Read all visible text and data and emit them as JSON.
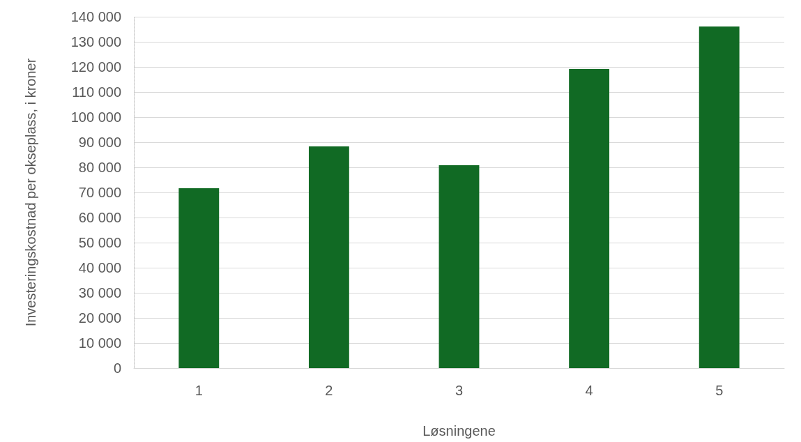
{
  "chart_data": {
    "type": "bar",
    "xlabel": "Løsningene",
    "ylabel": "Investeringskostnad per okseplass, i kroner",
    "categories": [
      "1",
      "2",
      "3",
      "4",
      "5"
    ],
    "values": [
      71700,
      88300,
      80800,
      119200,
      136100
    ],
    "color": "#116a24",
    "ylim": [
      0,
      140000
    ],
    "yticks": [
      {
        "value": 0,
        "label": "0"
      },
      {
        "value": 10000,
        "label": "10 000"
      },
      {
        "value": 20000,
        "label": "20 000"
      },
      {
        "value": 30000,
        "label": "30 000"
      },
      {
        "value": 40000,
        "label": "40 000"
      },
      {
        "value": 50000,
        "label": "50 000"
      },
      {
        "value": 60000,
        "label": "60 000"
      },
      {
        "value": 70000,
        "label": "70 000"
      },
      {
        "value": 80000,
        "label": "80 000"
      },
      {
        "value": 90000,
        "label": "90 000"
      },
      {
        "value": 100000,
        "label": "100 000"
      },
      {
        "value": 110000,
        "label": "110 000"
      },
      {
        "value": 120000,
        "label": "120 000"
      },
      {
        "value": 130000,
        "label": "130 000"
      },
      {
        "value": 140000,
        "label": "140 000"
      }
    ],
    "grid": "y"
  }
}
